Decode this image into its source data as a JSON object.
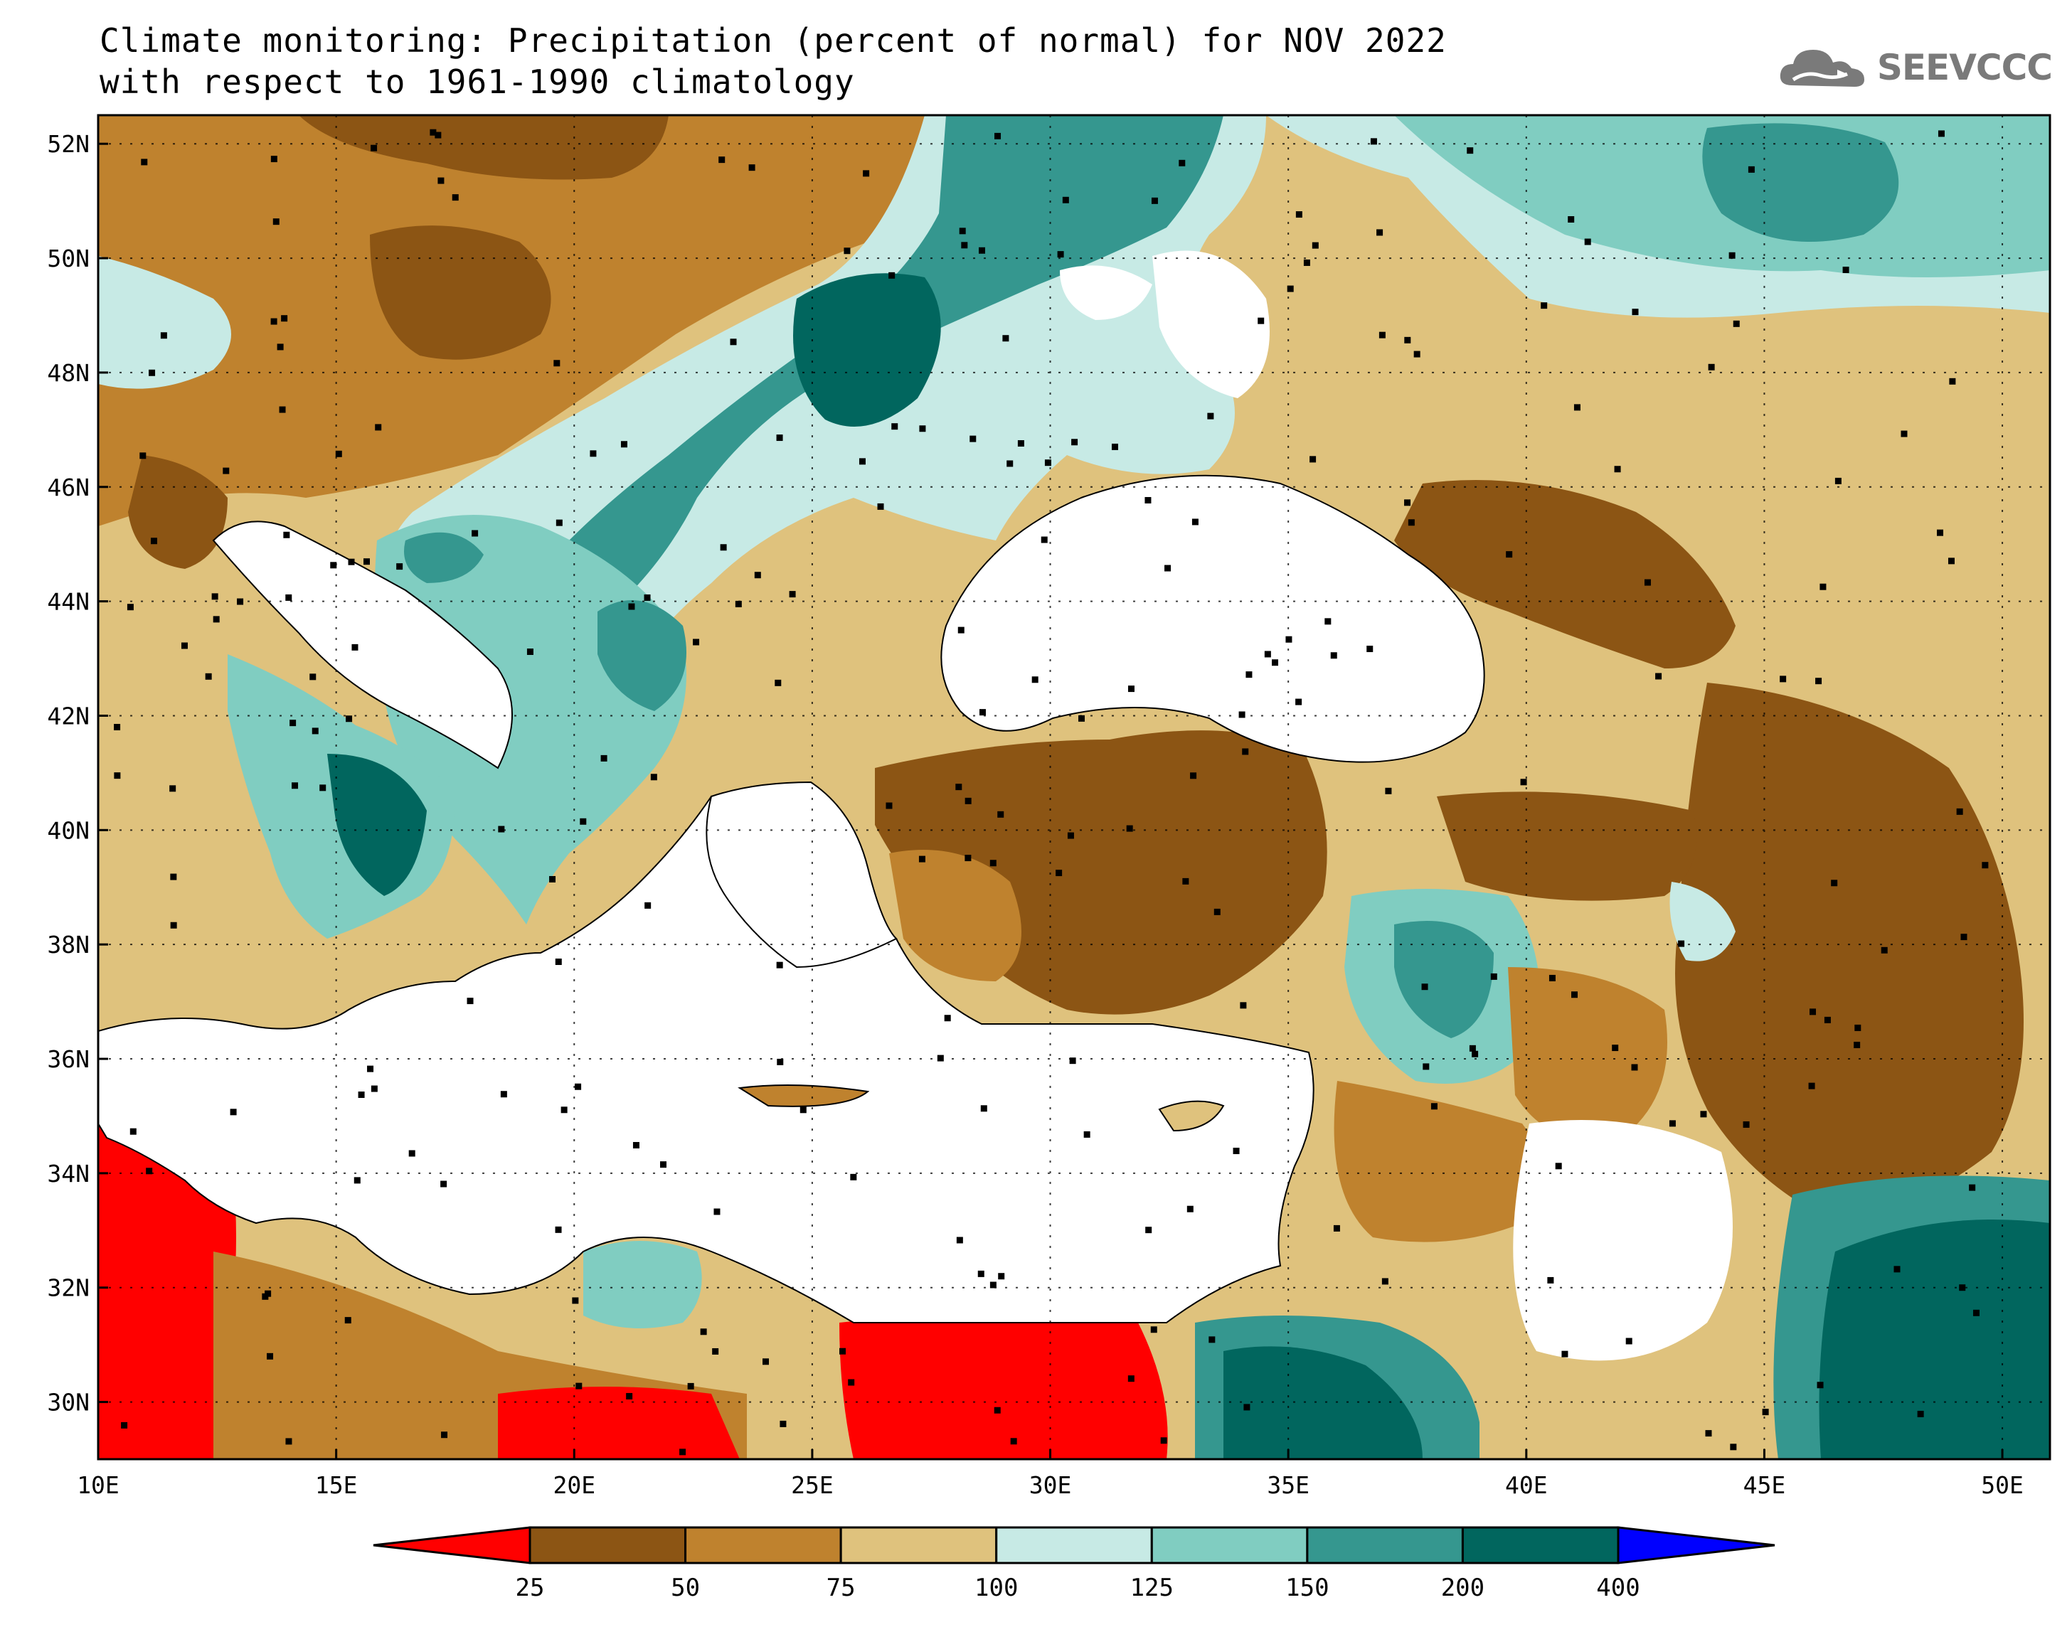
{
  "title": {
    "line1": "Climate monitoring: Precipitation (percent of normal) for NOV 2022",
    "line2": "with respect to 1961-1990 climatology"
  },
  "logo": {
    "text": "SEEVCCC",
    "icon": "cloud-logo-icon"
  },
  "map": {
    "lon_ticks": [
      "10E",
      "15E",
      "20E",
      "25E",
      "30E",
      "35E",
      "40E",
      "45E",
      "50E"
    ],
    "lat_ticks": [
      "52N",
      "50N",
      "48N",
      "46N",
      "44N",
      "42N",
      "40N",
      "38N",
      "36N",
      "34N",
      "32N",
      "30N"
    ],
    "lon_range": [
      10,
      51
    ],
    "lat_range": [
      29,
      52.5
    ],
    "grid": true
  },
  "colorbar": {
    "labels": [
      "25",
      "50",
      "75",
      "100",
      "125",
      "150",
      "200",
      "400"
    ],
    "colors": [
      "#ff0000",
      "#8c5514",
      "#bf822e",
      "#dfc27d",
      "#c7eae5",
      "#80cdc1",
      "#35978f",
      "#01665e",
      "#0000ff"
    ]
  }
}
